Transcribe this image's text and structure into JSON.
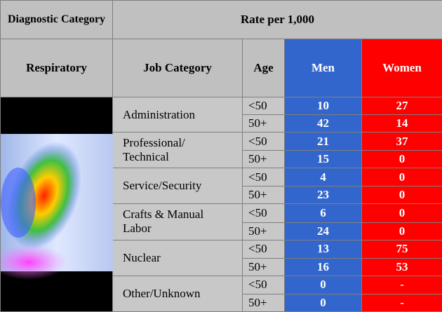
{
  "header": {
    "diagnostic_category": "Diagnostic Category",
    "rate": "Rate per 1,000",
    "condition": "Respiratory",
    "job_category": "Job Category",
    "age": "Age",
    "men": "Men",
    "women": "Women"
  },
  "table": {
    "groups": [
      {
        "job": "Administration",
        "rows": [
          {
            "age": "<50",
            "men": 10,
            "women": 27
          },
          {
            "age": "50+",
            "men": 42,
            "women": 14
          }
        ]
      },
      {
        "job": "Professional/\nTechnical",
        "rows": [
          {
            "age": "<50",
            "men": 21,
            "women": 37
          },
          {
            "age": "50+",
            "men": 15,
            "women": 0
          }
        ]
      },
      {
        "job": "Service/Security",
        "rows": [
          {
            "age": "<50",
            "men": 4,
            "women": 0
          },
          {
            "age": "50+",
            "men": 23,
            "women": 0
          }
        ]
      },
      {
        "job": "Crafts & Manual\nLabor",
        "rows": [
          {
            "age": "<50",
            "men": 6,
            "women": 0
          },
          {
            "age": "50+",
            "men": 24,
            "women": 0
          }
        ]
      },
      {
        "job": "Nuclear",
        "rows": [
          {
            "age": "<50",
            "men": 13,
            "women": 75
          },
          {
            "age": "50+",
            "men": 16,
            "women": 53
          }
        ]
      },
      {
        "job": "Other/Unknown",
        "rows": [
          {
            "age": "<50",
            "men": 0,
            "women": "-"
          },
          {
            "age": "50+",
            "men": 0,
            "women": "-"
          }
        ]
      }
    ]
  }
}
